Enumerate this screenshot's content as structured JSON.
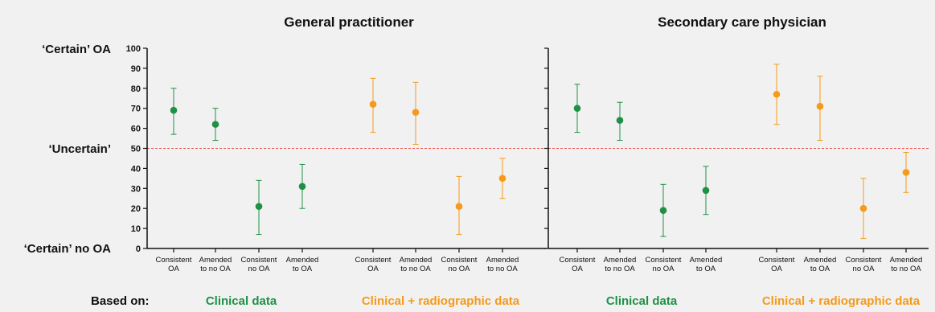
{
  "colors": {
    "clinical": "#1e9146",
    "radiographic": "#f59a1a",
    "reference_line": "#ee4c4c",
    "axis": "#111111",
    "background": "#f1f1f1"
  },
  "y_labels": {
    "certain_oa": "‘Certain’ OA",
    "uncertain": "‘Uncertain’",
    "certain_no_oa": "‘Certain’ no OA"
  },
  "footer": {
    "based_on": "Based on:",
    "left_clinical": "Clinical data",
    "left_radiographic": "Clinical + radiographic data",
    "right_clinical": "Clinical data",
    "right_radiographic": "Clinical + radiographic data"
  },
  "chart_data": [
    {
      "type": "scatter",
      "title": "General practitioner",
      "ylim": [
        0,
        100
      ],
      "yticks": [
        0,
        10,
        20,
        30,
        40,
        50,
        60,
        70,
        80,
        90,
        100
      ],
      "reference_line": 50,
      "categories": [
        [
          "Consistent",
          "OA"
        ],
        [
          "Amended",
          "to no OA"
        ],
        [
          "Consistent",
          "no OA"
        ],
        [
          "Amended",
          "to OA"
        ],
        [
          "Consistent",
          "OA"
        ],
        [
          "Amended",
          "to no OA"
        ],
        [
          "Consistent",
          "no OA"
        ],
        [
          "Amended",
          "to no OA"
        ]
      ],
      "series": [
        {
          "group": "clinical",
          "points": [
            {
              "cat": 0,
              "y": 69,
              "low": 57,
              "high": 80
            },
            {
              "cat": 1,
              "y": 62,
              "low": 54,
              "high": 70
            },
            {
              "cat": 2,
              "y": 21,
              "low": 7,
              "high": 34
            },
            {
              "cat": 3,
              "y": 31,
              "low": 20,
              "high": 42
            }
          ]
        },
        {
          "group": "radiographic",
          "points": [
            {
              "cat": 4,
              "y": 72,
              "low": 58,
              "high": 85
            },
            {
              "cat": 5,
              "y": 68,
              "low": 52,
              "high": 83
            },
            {
              "cat": 6,
              "y": 21,
              "low": 7,
              "high": 36
            },
            {
              "cat": 7,
              "y": 35,
              "low": 25,
              "high": 45
            }
          ]
        }
      ]
    },
    {
      "type": "scatter",
      "title": "Secondary care physician",
      "ylim": [
        0,
        100
      ],
      "reference_line": 50,
      "categories": [
        [
          "Consistent",
          "OA"
        ],
        [
          "Amended",
          "to no OA"
        ],
        [
          "Consistent",
          "no OA"
        ],
        [
          "Amended",
          "to OA"
        ],
        [
          "Consistent",
          "OA"
        ],
        [
          "Amended",
          "to OA"
        ],
        [
          "Consistent",
          "no OA"
        ],
        [
          "Amended",
          "to no OA"
        ]
      ],
      "series": [
        {
          "group": "clinical",
          "points": [
            {
              "cat": 0,
              "y": 70,
              "low": 58,
              "high": 82
            },
            {
              "cat": 1,
              "y": 64,
              "low": 54,
              "high": 73
            },
            {
              "cat": 2,
              "y": 19,
              "low": 6,
              "high": 32
            },
            {
              "cat": 3,
              "y": 29,
              "low": 17,
              "high": 41
            }
          ]
        },
        {
          "group": "radiographic",
          "points": [
            {
              "cat": 4,
              "y": 77,
              "low": 62,
              "high": 92
            },
            {
              "cat": 5,
              "y": 71,
              "low": 54,
              "high": 86
            },
            {
              "cat": 6,
              "y": 20,
              "low": 5,
              "high": 35
            },
            {
              "cat": 7,
              "y": 38,
              "low": 28,
              "high": 48
            }
          ]
        }
      ]
    }
  ]
}
